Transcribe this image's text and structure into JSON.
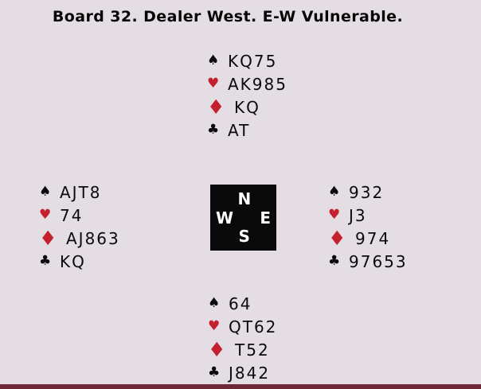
{
  "title": "Board 32. Dealer West. E-W Vulnerable.",
  "colors": {
    "background": "#e4dde4",
    "red_suit": "#c4202e",
    "black_suit": "#0a0a0a",
    "compass_background": "#0a0a0a",
    "compass_text": "#ffffff",
    "bottom_bar": "#6f2936"
  },
  "suit_symbols": {
    "spade": "♠",
    "heart": "♥",
    "diamond": "♦",
    "club": "♣"
  },
  "compass": {
    "north": "N",
    "west": "W",
    "east": "E",
    "south": "S"
  },
  "hands": {
    "north": {
      "spades": "KQ75",
      "hearts": "AK985",
      "diamonds": "KQ",
      "clubs": "AT"
    },
    "west": {
      "spades": "AJT8",
      "hearts": "74",
      "diamonds": "AJ863",
      "clubs": "KQ"
    },
    "east": {
      "spades": "932",
      "hearts": "J3",
      "diamonds": "974",
      "clubs": "97653"
    },
    "south": {
      "spades": "64",
      "hearts": "QT62",
      "diamonds": "T52",
      "clubs": "J842"
    }
  }
}
